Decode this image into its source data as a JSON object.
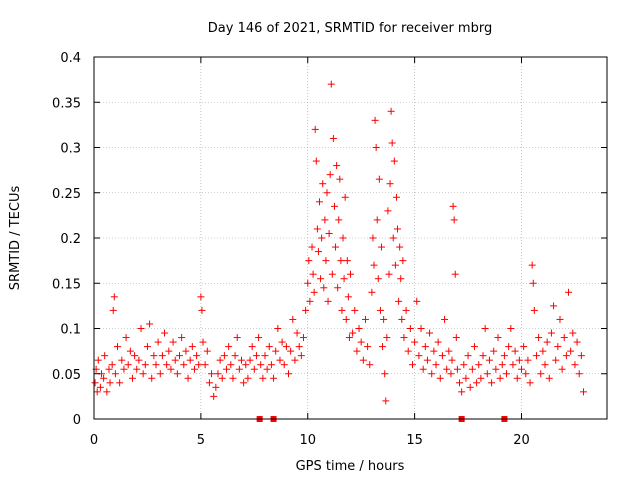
{
  "chart_data": {
    "type": "scatter",
    "title": "Day 146 of 2021, SRMTID for receiver mbrg",
    "xlabel": "GPS time / hours",
    "ylabel": "SRMTID / TECUs",
    "xlim": [
      0,
      24
    ],
    "ylim": [
      0,
      0.4
    ],
    "xticks": [
      0,
      5,
      10,
      15,
      20
    ],
    "yticks": [
      0,
      0.05,
      0.1,
      0.15,
      0.2,
      0.25,
      0.3,
      0.35,
      0.4
    ],
    "xtick_labels": [
      "0",
      "5",
      "10",
      "15",
      "20"
    ],
    "ytick_labels": [
      "0",
      "0.05",
      "0.1",
      "0.15",
      "0.2",
      "0.25",
      "0.3",
      "0.35",
      "0.4"
    ],
    "grid": true,
    "marker": "+",
    "series_color": "#ff0000",
    "zero_markers_x": [
      7.75,
      8.4,
      17.2,
      19.2
    ],
    "series": [
      {
        "name": "SRMTID",
        "points": [
          [
            0.05,
            0.04
          ],
          [
            0.1,
            0.055
          ],
          [
            0.15,
            0.03
          ],
          [
            0.2,
            0.065
          ],
          [
            0.3,
            0.035
          ],
          [
            0.35,
            0.05
          ],
          [
            0.45,
            0.045
          ],
          [
            0.5,
            0.07
          ],
          [
            0.6,
            0.03
          ],
          [
            0.7,
            0.055
          ],
          [
            0.75,
            0.04
          ],
          [
            0.85,
            0.06
          ],
          [
            0.9,
            0.12
          ],
          [
            0.95,
            0.135
          ],
          [
            1.0,
            0.05
          ],
          [
            1.1,
            0.08
          ],
          [
            1.2,
            0.04
          ],
          [
            1.3,
            0.065
          ],
          [
            1.4,
            0.055
          ],
          [
            1.5,
            0.09
          ],
          [
            1.6,
            0.06
          ],
          [
            1.7,
            0.075
          ],
          [
            1.8,
            0.045
          ],
          [
            1.9,
            0.07
          ],
          [
            2.0,
            0.055
          ],
          [
            2.1,
            0.065
          ],
          [
            2.2,
            0.1
          ],
          [
            2.3,
            0.05
          ],
          [
            2.4,
            0.06
          ],
          [
            2.5,
            0.08
          ],
          [
            2.6,
            0.105
          ],
          [
            2.7,
            0.045
          ],
          [
            2.8,
            0.07
          ],
          [
            2.9,
            0.06
          ],
          [
            3.0,
            0.085
          ],
          [
            3.1,
            0.05
          ],
          [
            3.2,
            0.07
          ],
          [
            3.3,
            0.095
          ],
          [
            3.4,
            0.06
          ],
          [
            3.5,
            0.075
          ],
          [
            3.6,
            0.055
          ],
          [
            3.7,
            0.085
          ],
          [
            3.8,
            0.065
          ],
          [
            3.9,
            0.05
          ],
          [
            4.0,
            0.07
          ],
          [
            4.1,
            0.09
          ],
          [
            4.2,
            0.06
          ],
          [
            4.3,
            0.075
          ],
          [
            4.4,
            0.045
          ],
          [
            4.5,
            0.065
          ],
          [
            4.6,
            0.08
          ],
          [
            4.7,
            0.055
          ],
          [
            4.8,
            0.07
          ],
          [
            4.9,
            0.06
          ],
          [
            5.0,
            0.135
          ],
          [
            5.05,
            0.12
          ],
          [
            5.1,
            0.085
          ],
          [
            5.2,
            0.06
          ],
          [
            5.3,
            0.075
          ],
          [
            5.4,
            0.04
          ],
          [
            5.5,
            0.05
          ],
          [
            5.6,
            0.025
          ],
          [
            5.7,
            0.035
          ],
          [
            5.8,
            0.05
          ],
          [
            5.9,
            0.065
          ],
          [
            6.0,
            0.045
          ],
          [
            6.1,
            0.07
          ],
          [
            6.2,
            0.055
          ],
          [
            6.3,
            0.08
          ],
          [
            6.4,
            0.06
          ],
          [
            6.5,
            0.045
          ],
          [
            6.6,
            0.07
          ],
          [
            6.7,
            0.09
          ],
          [
            6.8,
            0.055
          ],
          [
            6.9,
            0.065
          ],
          [
            7.0,
            0.04
          ],
          [
            7.1,
            0.06
          ],
          [
            7.2,
            0.045
          ],
          [
            7.3,
            0.065
          ],
          [
            7.4,
            0.08
          ],
          [
            7.5,
            0.055
          ],
          [
            7.6,
            0.07
          ],
          [
            7.7,
            0.09
          ],
          [
            7.8,
            0.06
          ],
          [
            7.9,
            0.045
          ],
          [
            8.0,
            0.07
          ],
          [
            8.1,
            0.055
          ],
          [
            8.2,
            0.08
          ],
          [
            8.3,
            0.06
          ],
          [
            8.4,
            0.045
          ],
          [
            8.5,
            0.075
          ],
          [
            8.6,
            0.1
          ],
          [
            8.7,
            0.065
          ],
          [
            8.8,
            0.085
          ],
          [
            8.9,
            0.06
          ],
          [
            9.0,
            0.08
          ],
          [
            9.1,
            0.05
          ],
          [
            9.2,
            0.075
          ],
          [
            9.3,
            0.11
          ],
          [
            9.4,
            0.065
          ],
          [
            9.5,
            0.095
          ],
          [
            9.6,
            0.08
          ],
          [
            9.7,
            0.07
          ],
          [
            9.8,
            0.09
          ],
          [
            9.9,
            0.12
          ],
          [
            10.0,
            0.15
          ],
          [
            10.05,
            0.175
          ],
          [
            10.1,
            0.13
          ],
          [
            10.2,
            0.19
          ],
          [
            10.25,
            0.16
          ],
          [
            10.3,
            0.14
          ],
          [
            10.35,
            0.32
          ],
          [
            10.4,
            0.285
          ],
          [
            10.45,
            0.21
          ],
          [
            10.5,
            0.185
          ],
          [
            10.55,
            0.24
          ],
          [
            10.6,
            0.155
          ],
          [
            10.65,
            0.2
          ],
          [
            10.7,
            0.26
          ],
          [
            10.75,
            0.145
          ],
          [
            10.8,
            0.22
          ],
          [
            10.85,
            0.175
          ],
          [
            10.9,
            0.25
          ],
          [
            10.95,
            0.13
          ],
          [
            11.0,
            0.205
          ],
          [
            11.05,
            0.27
          ],
          [
            11.1,
            0.37
          ],
          [
            11.15,
            0.16
          ],
          [
            11.2,
            0.31
          ],
          [
            11.25,
            0.235
          ],
          [
            11.3,
            0.19
          ],
          [
            11.35,
            0.28
          ],
          [
            11.4,
            0.145
          ],
          [
            11.45,
            0.22
          ],
          [
            11.5,
            0.265
          ],
          [
            11.55,
            0.175
          ],
          [
            11.6,
            0.12
          ],
          [
            11.65,
            0.2
          ],
          [
            11.7,
            0.155
          ],
          [
            11.75,
            0.245
          ],
          [
            11.8,
            0.11
          ],
          [
            11.85,
            0.175
          ],
          [
            11.9,
            0.135
          ],
          [
            11.95,
            0.09
          ],
          [
            12.0,
            0.16
          ],
          [
            12.1,
            0.095
          ],
          [
            12.2,
            0.12
          ],
          [
            12.3,
            0.075
          ],
          [
            12.4,
            0.1
          ],
          [
            12.5,
            0.085
          ],
          [
            12.6,
            0.065
          ],
          [
            12.7,
            0.11
          ],
          [
            12.8,
            0.08
          ],
          [
            12.9,
            0.06
          ],
          [
            13.0,
            0.14
          ],
          [
            13.05,
            0.2
          ],
          [
            13.1,
            0.17
          ],
          [
            13.15,
            0.33
          ],
          [
            13.2,
            0.3
          ],
          [
            13.25,
            0.22
          ],
          [
            13.3,
            0.155
          ],
          [
            13.35,
            0.265
          ],
          [
            13.4,
            0.12
          ],
          [
            13.45,
            0.19
          ],
          [
            13.5,
            0.08
          ],
          [
            13.55,
            0.11
          ],
          [
            13.6,
            0.05
          ],
          [
            13.65,
            0.02
          ],
          [
            13.7,
            0.09
          ],
          [
            13.75,
            0.23
          ],
          [
            13.8,
            0.16
          ],
          [
            13.85,
            0.26
          ],
          [
            13.9,
            0.34
          ],
          [
            13.95,
            0.305
          ],
          [
            14.0,
            0.2
          ],
          [
            14.05,
            0.285
          ],
          [
            14.1,
            0.17
          ],
          [
            14.15,
            0.245
          ],
          [
            14.2,
            0.21
          ],
          [
            14.25,
            0.13
          ],
          [
            14.3,
            0.19
          ],
          [
            14.35,
            0.155
          ],
          [
            14.4,
            0.11
          ],
          [
            14.45,
            0.175
          ],
          [
            14.5,
            0.09
          ],
          [
            14.6,
            0.12
          ],
          [
            14.7,
            0.075
          ],
          [
            14.8,
            0.1
          ],
          [
            14.9,
            0.06
          ],
          [
            15.0,
            0.085
          ],
          [
            15.1,
            0.13
          ],
          [
            15.2,
            0.07
          ],
          [
            15.3,
            0.1
          ],
          [
            15.4,
            0.055
          ],
          [
            15.5,
            0.08
          ],
          [
            15.6,
            0.065
          ],
          [
            15.7,
            0.095
          ],
          [
            15.8,
            0.05
          ],
          [
            15.9,
            0.075
          ],
          [
            16.0,
            0.06
          ],
          [
            16.1,
            0.085
          ],
          [
            16.2,
            0.045
          ],
          [
            16.3,
            0.07
          ],
          [
            16.4,
            0.11
          ],
          [
            16.5,
            0.055
          ],
          [
            16.6,
            0.075
          ],
          [
            16.7,
            0.05
          ],
          [
            16.75,
            0.065
          ],
          [
            16.8,
            0.235
          ],
          [
            16.85,
            0.22
          ],
          [
            16.9,
            0.16
          ],
          [
            16.95,
            0.09
          ],
          [
            17.0,
            0.055
          ],
          [
            17.1,
            0.04
          ],
          [
            17.2,
            0.03
          ],
          [
            17.3,
            0.06
          ],
          [
            17.4,
            0.045
          ],
          [
            17.5,
            0.07
          ],
          [
            17.6,
            0.035
          ],
          [
            17.7,
            0.055
          ],
          [
            17.8,
            0.08
          ],
          [
            17.9,
            0.04
          ],
          [
            18.0,
            0.06
          ],
          [
            18.1,
            0.045
          ],
          [
            18.2,
            0.07
          ],
          [
            18.3,
            0.1
          ],
          [
            18.4,
            0.05
          ],
          [
            18.5,
            0.065
          ],
          [
            18.6,
            0.04
          ],
          [
            18.7,
            0.075
          ],
          [
            18.8,
            0.055
          ],
          [
            18.9,
            0.09
          ],
          [
            19.0,
            0.045
          ],
          [
            19.1,
            0.06
          ],
          [
            19.2,
            0.07
          ],
          [
            19.3,
            0.05
          ],
          [
            19.4,
            0.08
          ],
          [
            19.5,
            0.1
          ],
          [
            19.6,
            0.06
          ],
          [
            19.7,
            0.075
          ],
          [
            19.8,
            0.045
          ],
          [
            19.9,
            0.065
          ],
          [
            20.0,
            0.055
          ],
          [
            20.1,
            0.08
          ],
          [
            20.2,
            0.05
          ],
          [
            20.3,
            0.065
          ],
          [
            20.4,
            0.04
          ],
          [
            20.5,
            0.17
          ],
          [
            20.55,
            0.15
          ],
          [
            20.6,
            0.12
          ],
          [
            20.7,
            0.07
          ],
          [
            20.8,
            0.09
          ],
          [
            20.9,
            0.05
          ],
          [
            21.0,
            0.075
          ],
          [
            21.1,
            0.06
          ],
          [
            21.2,
            0.085
          ],
          [
            21.3,
            0.045
          ],
          [
            21.4,
            0.095
          ],
          [
            21.5,
            0.125
          ],
          [
            21.6,
            0.065
          ],
          [
            21.7,
            0.08
          ],
          [
            21.8,
            0.11
          ],
          [
            21.9,
            0.055
          ],
          [
            22.0,
            0.09
          ],
          [
            22.1,
            0.07
          ],
          [
            22.2,
            0.14
          ],
          [
            22.3,
            0.075
          ],
          [
            22.4,
            0.095
          ],
          [
            22.5,
            0.06
          ],
          [
            22.6,
            0.085
          ],
          [
            22.7,
            0.05
          ],
          [
            22.8,
            0.07
          ],
          [
            22.9,
            0.03
          ]
        ]
      }
    ]
  }
}
